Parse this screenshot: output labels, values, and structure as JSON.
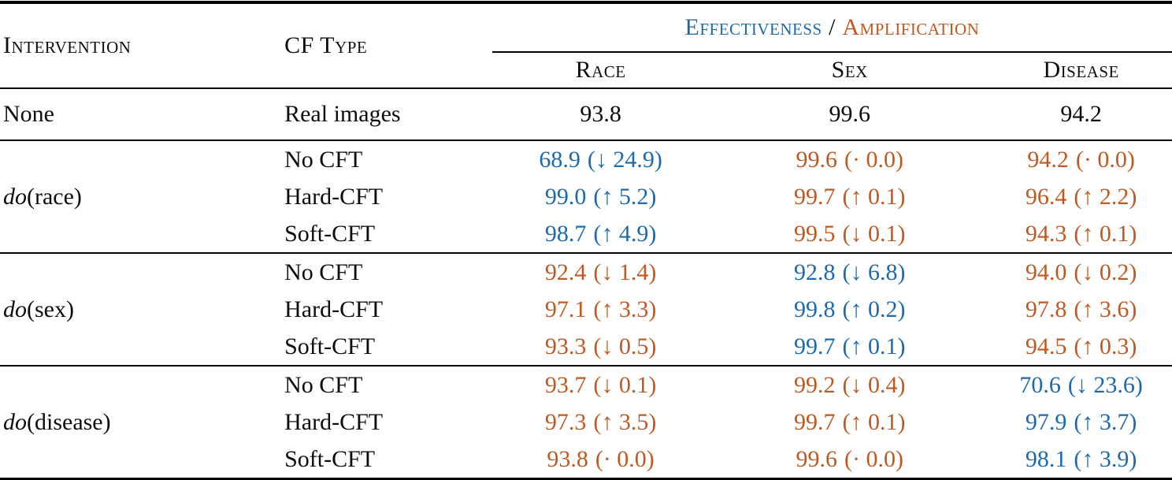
{
  "colors": {
    "effectiveness": "#1b69af",
    "amplification": "#bf5821",
    "text": "#0d0d0d",
    "rule": "#000000"
  },
  "header": {
    "intervention": "Intervention",
    "cf_type": "CF Type",
    "effectiveness": "Effectiveness",
    "separator": "/",
    "amplification": "Amplification",
    "subcolumns": [
      "Race",
      "Sex",
      "Disease"
    ]
  },
  "baseline": {
    "intervention": "None",
    "cf_type": "Real images",
    "race": "93.8",
    "sex": "99.6",
    "disease": "94.2"
  },
  "groups": [
    {
      "do": "do",
      "target": "(race)",
      "rows": [
        {
          "cf_type": "No CFT",
          "race": {
            "value": "68.9",
            "change": "(↓ 24.9)",
            "kind": "eff"
          },
          "sex": {
            "value": "99.6",
            "change": "(· 0.0)",
            "kind": "amp"
          },
          "disease": {
            "value": "94.2",
            "change": "(· 0.0)",
            "kind": "amp"
          }
        },
        {
          "cf_type": "Hard-CFT",
          "race": {
            "value": "99.0",
            "change": "(↑ 5.2)",
            "kind": "eff"
          },
          "sex": {
            "value": "99.7",
            "change": "(↑ 0.1)",
            "kind": "amp"
          },
          "disease": {
            "value": "96.4",
            "change": "(↑ 2.2)",
            "kind": "amp"
          }
        },
        {
          "cf_type": "Soft-CFT",
          "race": {
            "value": "98.7",
            "change": "(↑ 4.9)",
            "kind": "eff"
          },
          "sex": {
            "value": "99.5",
            "change": "(↓ 0.1)",
            "kind": "amp"
          },
          "disease": {
            "value": "94.3",
            "change": "(↑ 0.1)",
            "kind": "amp"
          }
        }
      ]
    },
    {
      "do": "do",
      "target": "(sex)",
      "rows": [
        {
          "cf_type": "No CFT",
          "race": {
            "value": "92.4",
            "change": "(↓ 1.4)",
            "kind": "amp"
          },
          "sex": {
            "value": "92.8",
            "change": "(↓ 6.8)",
            "kind": "eff"
          },
          "disease": {
            "value": "94.0",
            "change": "(↓ 0.2)",
            "kind": "amp"
          }
        },
        {
          "cf_type": "Hard-CFT",
          "race": {
            "value": "97.1",
            "change": "(↑ 3.3)",
            "kind": "amp"
          },
          "sex": {
            "value": "99.8",
            "change": "(↑ 0.2)",
            "kind": "eff"
          },
          "disease": {
            "value": "97.8",
            "change": "(↑ 3.6)",
            "kind": "amp"
          }
        },
        {
          "cf_type": "Soft-CFT",
          "race": {
            "value": "93.3",
            "change": "(↓ 0.5)",
            "kind": "amp"
          },
          "sex": {
            "value": "99.7",
            "change": "(↑ 0.1)",
            "kind": "eff"
          },
          "disease": {
            "value": "94.5",
            "change": "(↑ 0.3)",
            "kind": "amp"
          }
        }
      ]
    },
    {
      "do": "do",
      "target": "(disease)",
      "rows": [
        {
          "cf_type": "No CFT",
          "race": {
            "value": "93.7",
            "change": "(↓ 0.1)",
            "kind": "amp"
          },
          "sex": {
            "value": "99.2",
            "change": "(↓ 0.4)",
            "kind": "amp"
          },
          "disease": {
            "value": "70.6",
            "change": "(↓ 23.6)",
            "kind": "eff"
          }
        },
        {
          "cf_type": "Hard-CFT",
          "race": {
            "value": "97.3",
            "change": "(↑ 3.5)",
            "kind": "amp"
          },
          "sex": {
            "value": "99.7",
            "change": "(↑ 0.1)",
            "kind": "amp"
          },
          "disease": {
            "value": "97.9",
            "change": "(↑ 3.7)",
            "kind": "eff"
          }
        },
        {
          "cf_type": "Soft-CFT",
          "race": {
            "value": "93.8",
            "change": "(· 0.0)",
            "kind": "amp"
          },
          "sex": {
            "value": "99.6",
            "change": "(· 0.0)",
            "kind": "amp"
          },
          "disease": {
            "value": "98.1",
            "change": "(↑ 3.9)",
            "kind": "eff"
          }
        }
      ]
    }
  ]
}
